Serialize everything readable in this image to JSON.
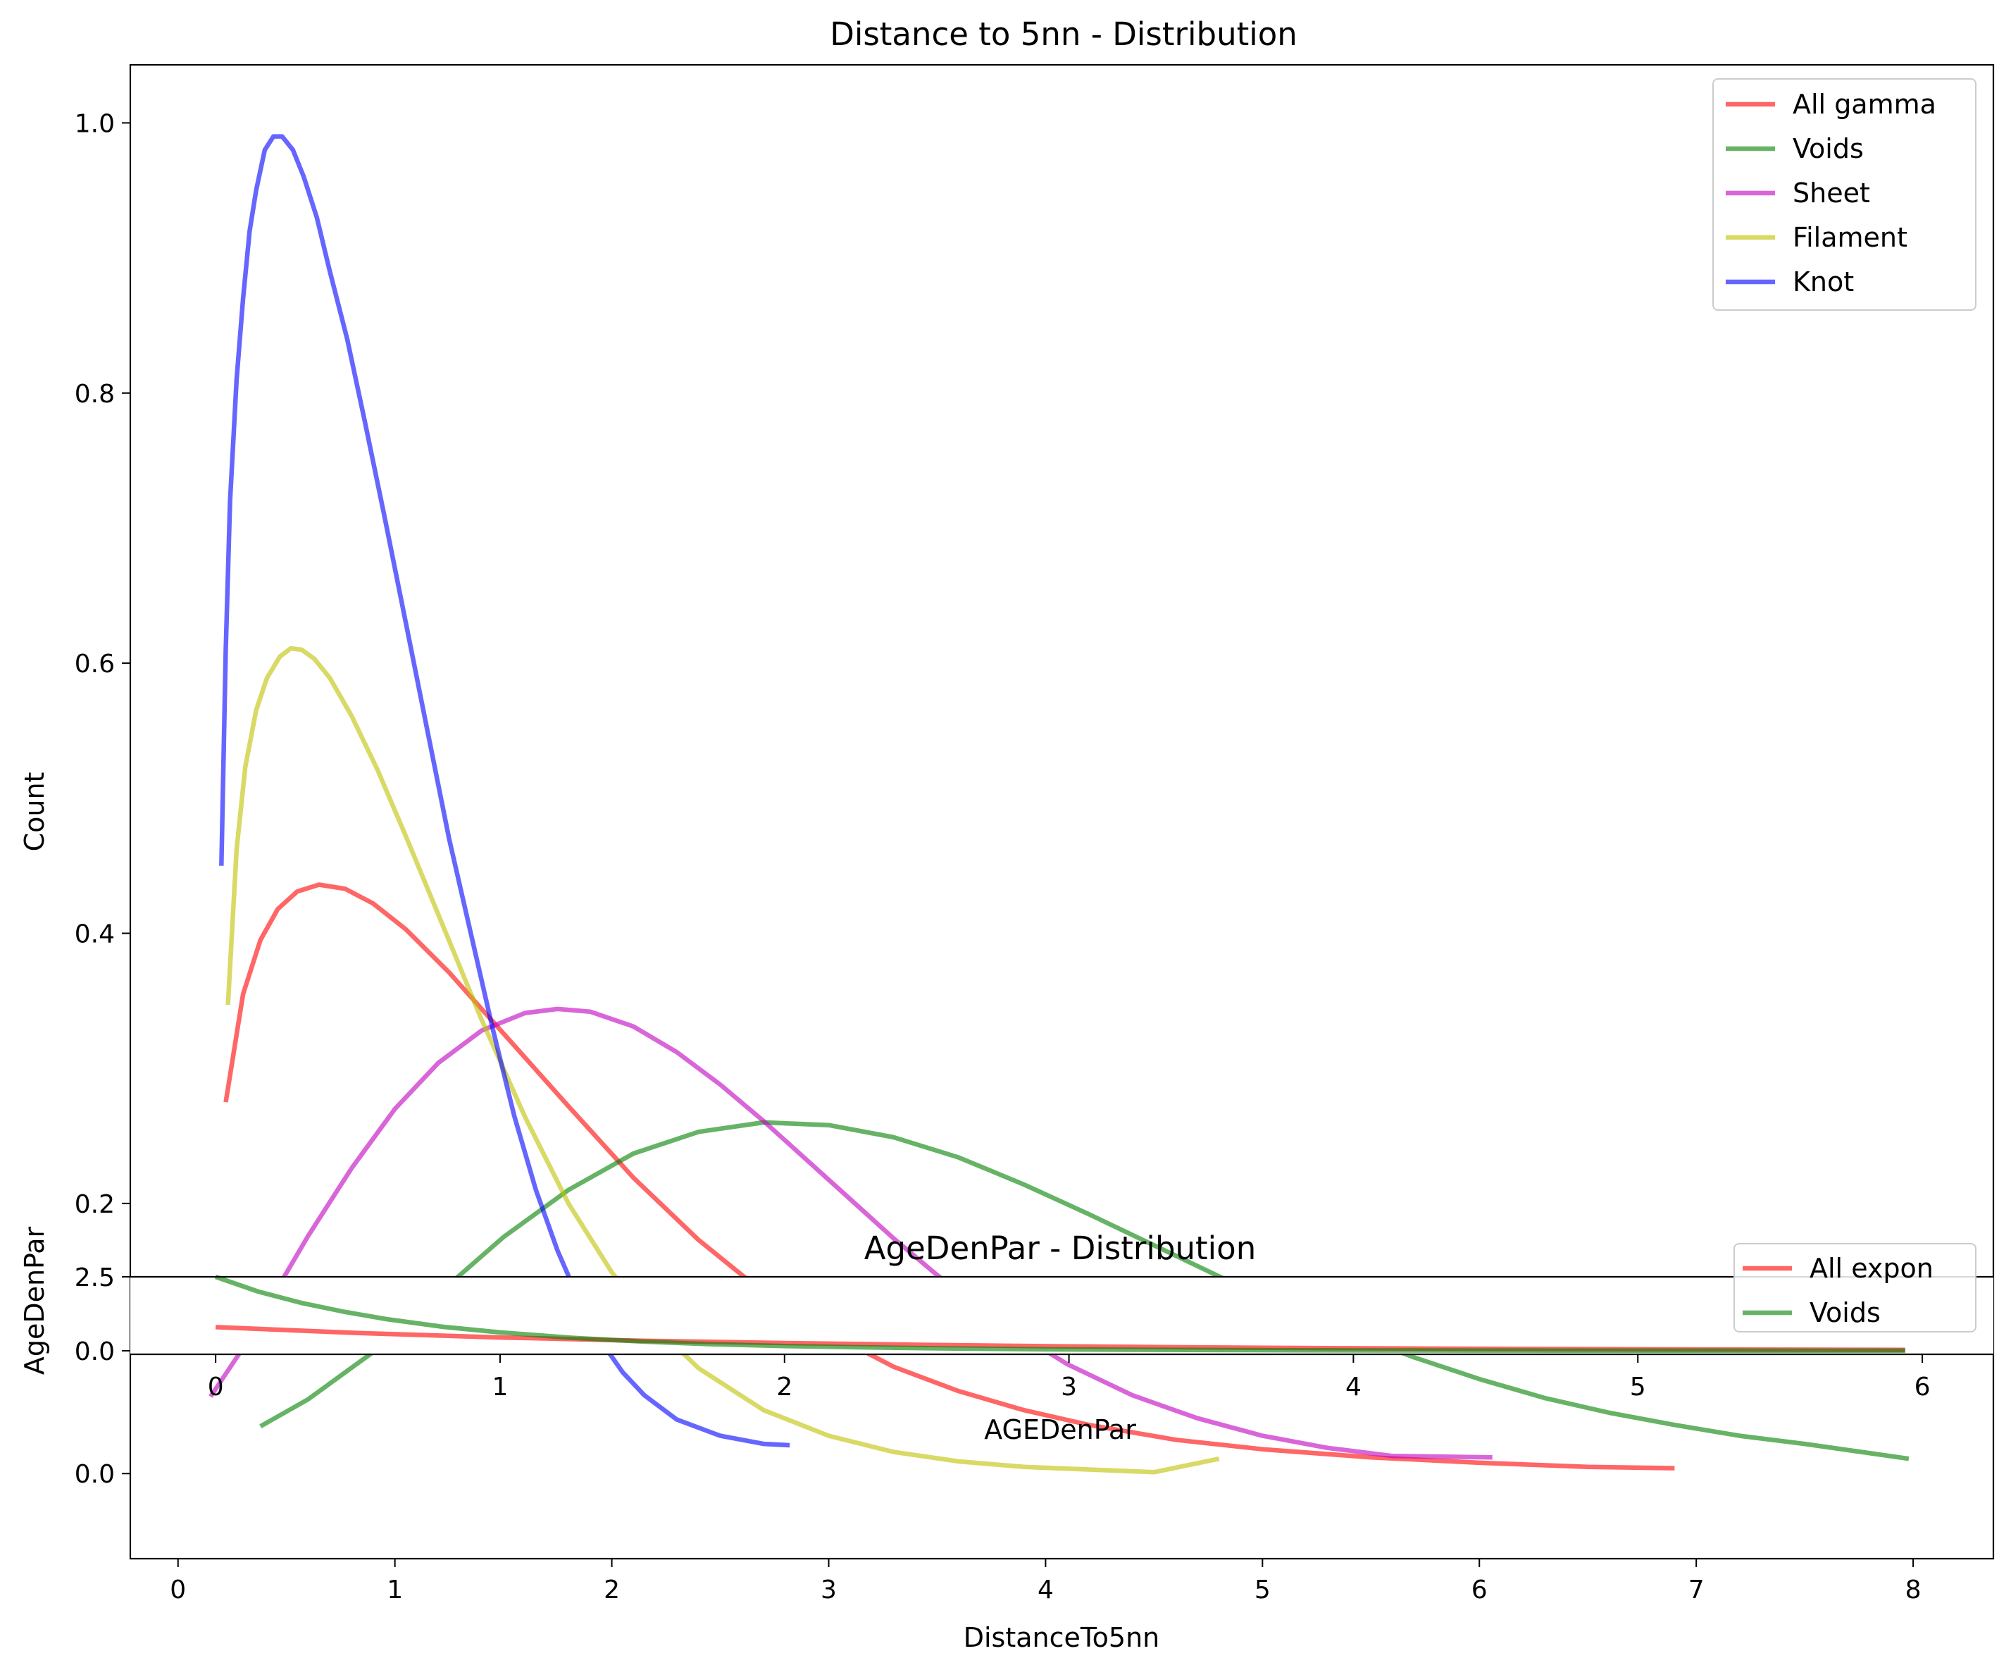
{
  "chart_data": [
    {
      "type": "line",
      "title": "Distance to 5nn - Distribution",
      "xlabel": "DistanceTo5nn",
      "ylabel": "Count",
      "xlim": [
        -0.22,
        8.37
      ],
      "ylim": [
        -0.063,
        1.043
      ],
      "xticks": [
        0,
        1,
        2,
        3,
        4,
        5,
        6,
        7,
        8
      ],
      "yticks": [
        0.0,
        0.2,
        0.4,
        0.6,
        0.8,
        1.0
      ],
      "xtick_labels": [
        "0",
        "1",
        "2",
        "3",
        "4",
        "5",
        "6",
        "7",
        "8"
      ],
      "ytick_labels": [
        "0.0",
        "0.2",
        "0.4",
        "0.6",
        "0.8",
        "1.0"
      ],
      "legend": "top-right",
      "grid": false,
      "series": [
        {
          "name": "All gamma",
          "color": "#ff0000",
          "x": [
            0.22,
            0.3,
            0.38,
            0.46,
            0.55,
            0.65,
            0.77,
            0.9,
            1.05,
            1.25,
            1.5,
            1.8,
            2.1,
            2.4,
            2.7,
            3.0,
            3.3,
            3.6,
            3.9,
            4.2,
            4.6,
            5.0,
            5.5,
            6.0,
            6.5,
            6.9
          ],
          "y": [
            0.275,
            0.355,
            0.395,
            0.418,
            0.431,
            0.436,
            0.433,
            0.422,
            0.403,
            0.371,
            0.326,
            0.272,
            0.219,
            0.173,
            0.134,
            0.104,
            0.079,
            0.061,
            0.047,
            0.036,
            0.025,
            0.018,
            0.012,
            0.008,
            0.005,
            0.004
          ]
        },
        {
          "name": "Voids",
          "color": "#008000",
          "x": [
            0.38,
            0.6,
            0.9,
            1.2,
            1.5,
            1.8,
            2.1,
            2.4,
            2.7,
            3.0,
            3.3,
            3.6,
            3.9,
            4.2,
            4.5,
            4.8,
            5.1,
            5.4,
            5.7,
            6.0,
            6.3,
            6.6,
            6.9,
            7.2,
            7.5,
            7.98
          ],
          "y": [
            0.035,
            0.055,
            0.09,
            0.133,
            0.175,
            0.21,
            0.237,
            0.253,
            0.26,
            0.258,
            0.249,
            0.234,
            0.214,
            0.192,
            0.169,
            0.146,
            0.124,
            0.104,
            0.086,
            0.07,
            0.056,
            0.045,
            0.036,
            0.028,
            0.022,
            0.011
          ]
        },
        {
          "name": "Sheet",
          "color": "#bf00bf",
          "x": [
            0.15,
            0.3,
            0.45,
            0.6,
            0.8,
            1.0,
            1.2,
            1.4,
            1.6,
            1.75,
            1.9,
            2.1,
            2.3,
            2.5,
            2.7,
            2.9,
            3.1,
            3.3,
            3.5,
            3.8,
            4.1,
            4.4,
            4.7,
            5.0,
            5.3,
            5.6,
            6.06
          ],
          "y": [
            0.057,
            0.093,
            0.135,
            0.176,
            0.226,
            0.27,
            0.304,
            0.328,
            0.341,
            0.344,
            0.342,
            0.331,
            0.312,
            0.288,
            0.261,
            0.232,
            0.203,
            0.174,
            0.147,
            0.111,
            0.081,
            0.058,
            0.041,
            0.028,
            0.019,
            0.013,
            0.012
          ]
        },
        {
          "name": "Filament",
          "color": "#bfbf00",
          "x": [
            0.23,
            0.27,
            0.31,
            0.36,
            0.41,
            0.47,
            0.52,
            0.57,
            0.63,
            0.7,
            0.8,
            0.92,
            1.05,
            1.2,
            1.4,
            1.6,
            1.8,
            2.0,
            2.2,
            2.4,
            2.7,
            3.0,
            3.3,
            3.6,
            3.9,
            4.2,
            4.5,
            4.8
          ],
          "y": [
            0.347,
            0.462,
            0.523,
            0.565,
            0.589,
            0.605,
            0.611,
            0.61,
            0.603,
            0.589,
            0.561,
            0.521,
            0.472,
            0.414,
            0.336,
            0.264,
            0.2,
            0.149,
            0.109,
            0.078,
            0.047,
            0.028,
            0.016,
            0.009,
            0.005,
            0.003,
            0.001,
            0.011
          ]
        },
        {
          "name": "Knot",
          "color": "#0000ff",
          "x": [
            0.2,
            0.22,
            0.24,
            0.27,
            0.3,
            0.33,
            0.36,
            0.4,
            0.44,
            0.48,
            0.53,
            0.58,
            0.64,
            0.7,
            0.78,
            0.86,
            0.95,
            1.05,
            1.15,
            1.25,
            1.35,
            1.45,
            1.55,
            1.65,
            1.75,
            1.85,
            1.95,
            2.05,
            2.15,
            2.3,
            2.5,
            2.7,
            2.82
          ],
          "y": [
            0.45,
            0.61,
            0.72,
            0.81,
            0.87,
            0.92,
            0.95,
            0.98,
            0.99,
            0.99,
            0.98,
            0.96,
            0.93,
            0.89,
            0.84,
            0.78,
            0.71,
            0.63,
            0.55,
            0.47,
            0.4,
            0.33,
            0.265,
            0.21,
            0.165,
            0.128,
            0.098,
            0.075,
            0.058,
            0.04,
            0.028,
            0.022,
            0.021
          ]
        }
      ]
    },
    {
      "type": "line",
      "title": "AgeDenPar  - Distribution",
      "xlabel": "AGEDenPar",
      "ylabel": "AgeDenPar",
      "xlim": [
        -0.3,
        6.25
      ],
      "ylim": [
        -0.12,
        2.5
      ],
      "xticks": [
        0,
        1,
        2,
        3,
        4,
        5,
        6
      ],
      "yticks": [
        0.0,
        2.5
      ],
      "xtick_labels": [
        "0",
        "1",
        "2",
        "3",
        "4",
        "5",
        "6"
      ],
      "ytick_labels": [
        "0.0",
        "2.5"
      ],
      "legend": "top-right",
      "grid": false,
      "series": [
        {
          "name": "All expon",
          "color": "#ff0000",
          "x": [
            0.0,
            0.5,
            1.0,
            1.5,
            2.0,
            2.5,
            3.0,
            3.5,
            4.0,
            4.5,
            5.0,
            5.5,
            5.94
          ],
          "y": [
            0.8,
            0.6,
            0.45,
            0.34,
            0.26,
            0.2,
            0.15,
            0.11,
            0.085,
            0.065,
            0.05,
            0.038,
            0.03
          ]
        },
        {
          "name": "Voids",
          "color": "#008000",
          "x": [
            0.0,
            0.15,
            0.3,
            0.45,
            0.6,
            0.8,
            1.0,
            1.25,
            1.5,
            1.75,
            2.0,
            2.3,
            2.6,
            2.9,
            3.2,
            3.5,
            3.8,
            4.1,
            4.4,
            4.7,
            5.0,
            5.3,
            5.6,
            5.94
          ],
          "y": [
            2.5,
            2.0,
            1.62,
            1.32,
            1.07,
            0.81,
            0.62,
            0.44,
            0.31,
            0.22,
            0.16,
            0.11,
            0.075,
            0.05,
            0.035,
            0.025,
            0.017,
            0.012,
            0.008,
            0.006,
            0.004,
            0.003,
            0.002,
            0.001
          ]
        }
      ]
    }
  ]
}
